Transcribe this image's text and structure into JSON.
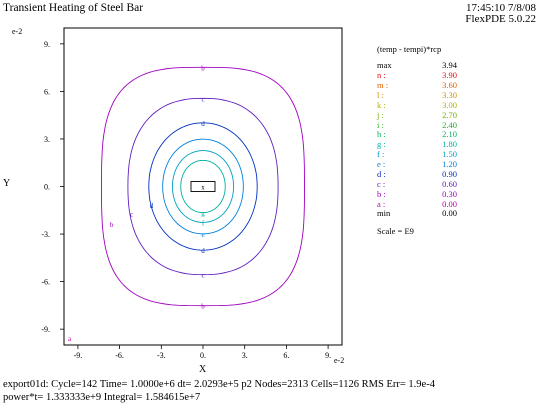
{
  "header": {
    "title": "Transient Heating of Steel Bar",
    "timestamp": "17:45:10 7/8/08",
    "version": "FlexPDE 5.0.22"
  },
  "footer": {
    "line1": "export01d:  Cycle=142  Time= 1.0000e+6  dt= 2.0293e+5  p2  Nodes=2313 Cells=1126 RMS Err= 1.9e-4",
    "line2": "power*t=  1.333333e+9  Integral=  1.584615e+7"
  },
  "legend": {
    "title": "(temp - tempi)*rcp",
    "max_label": "max",
    "max_value": "3.94",
    "min_label": "min",
    "min_value": "0.00",
    "scale": "Scale = E9",
    "levels": [
      {
        "label": "n :",
        "value": "3.90",
        "color": "#e01010"
      },
      {
        "label": "m :",
        "value": "3.60",
        "color": "#e06000"
      },
      {
        "label": "l :",
        "value": "3.30",
        "color": "#d09000"
      },
      {
        "label": "k :",
        "value": "3.00",
        "color": "#b0b000"
      },
      {
        "label": "j :",
        "value": "2.70",
        "color": "#70b000"
      },
      {
        "label": "i :",
        "value": "2.40",
        "color": "#20b020"
      },
      {
        "label": "h :",
        "value": "2.10",
        "color": "#00b060"
      },
      {
        "label": "g :",
        "value": "1.80",
        "color": "#00b0a0"
      },
      {
        "label": "f :",
        "value": "1.50",
        "color": "#00a0c0"
      },
      {
        "label": "e :",
        "value": "1.20",
        "color": "#0080e0"
      },
      {
        "label": "d :",
        "value": "0.90",
        "color": "#0030c0"
      },
      {
        "label": "c :",
        "value": "0.60",
        "color": "#6020c0"
      },
      {
        "label": "b :",
        "value": "0.30",
        "color": "#a000c0"
      },
      {
        "label": "a :",
        "value": "0.00",
        "color": "#c000a0"
      }
    ]
  },
  "chart_data": {
    "type": "contour",
    "title": "Transient Heating of Steel Bar",
    "xlabel": "X",
    "ylabel": "Y",
    "x_exponent_label": "e-2",
    "y_exponent_label": "e-2",
    "x_ticks": [
      "-9.",
      "-6.",
      "-3.",
      "0.",
      "3.",
      "6.",
      "9."
    ],
    "y_ticks": [
      "9.",
      "6.",
      "3.",
      "0.",
      "-3.",
      "-6.",
      "-9."
    ],
    "xlim": [
      -10,
      10
    ],
    "ylim": [
      -10,
      10
    ],
    "center_marker": "x",
    "contours": [
      {
        "label": "b",
        "level": 0.3,
        "radius": 7.3,
        "color": "#a000c0"
      },
      {
        "label": "c",
        "level": 0.6,
        "radius": 5.4,
        "color": "#6020c0"
      },
      {
        "label": "d",
        "level": 0.9,
        "radius": 3.9,
        "color": "#0030c0"
      },
      {
        "label": "e",
        "level": 1.2,
        "radius": 2.9,
        "color": "#0080e0"
      },
      {
        "label": "f",
        "level": 1.5,
        "radius": 2.2,
        "color": "#00a0c0"
      },
      {
        "label": "g",
        "level": 1.8,
        "radius": 1.6,
        "color": "#00b0a0"
      }
    ],
    "corner_label": "a"
  }
}
